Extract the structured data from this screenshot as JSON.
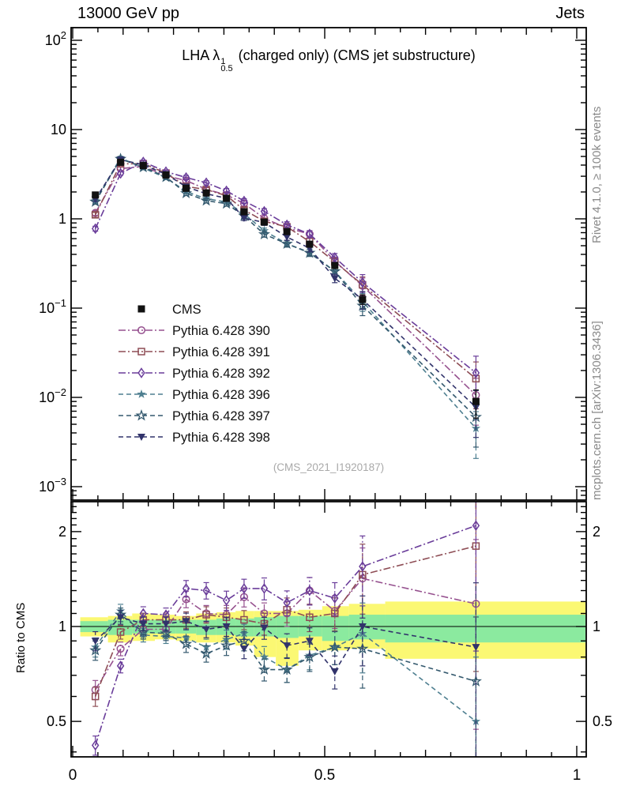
{
  "header": {
    "left": "13000 GeV pp",
    "right": "Jets"
  },
  "side_text": {
    "top": "Rivet 4.1.0, ≥ 100k events",
    "bottom": "mcplots.cern.ch [arXiv:1306.3436]"
  },
  "title": {
    "prefix": "LHA λ",
    "sup": "1",
    "sub": "0.5",
    "suffix": " (charged only) (CMS jet substructure)"
  },
  "watermark": "(CMS_2021_I1920187)",
  "ratio_axis_label": "Ratio to CMS",
  "chart_data": {
    "type": "line",
    "title": "LHA lambda^1_0.5 (charged only) (CMS jet substructure)",
    "x_ticks": [
      {
        "v": 0,
        "label": "0"
      },
      {
        "v": 0.5,
        "label": "0.5"
      },
      {
        "v": 1,
        "label": "1"
      }
    ],
    "main_y_ticks": [
      {
        "v": 100,
        "base": "10",
        "exp": "2"
      },
      {
        "v": 10,
        "base": "10",
        "exp": ""
      },
      {
        "v": 1,
        "base": "1",
        "exp": ""
      },
      {
        "v": 0.1,
        "base": "10",
        "exp": "−1"
      },
      {
        "v": 0.01,
        "base": "10",
        "exp": "−2"
      },
      {
        "v": 0.001,
        "base": "10",
        "exp": "−3"
      }
    ],
    "ratio_y_ticks": [
      {
        "v": 2,
        "label": "2"
      },
      {
        "v": 1,
        "label": "1"
      },
      {
        "v": 0.5,
        "label": "0.5"
      }
    ],
    "xlim": [
      0,
      1
    ],
    "main_ylim": [
      0.00071,
      139
    ],
    "ratio_ylim": [
      0.386,
      2.49
    ],
    "x": [
      0.045,
      0.095,
      0.14,
      0.185,
      0.225,
      0.265,
      0.305,
      0.34,
      0.38,
      0.425,
      0.47,
      0.52,
      0.575,
      0.8
    ],
    "bin_edges": [
      0.015,
      0.07,
      0.118,
      0.163,
      0.205,
      0.245,
      0.285,
      0.323,
      0.36,
      0.403,
      0.448,
      0.495,
      0.548,
      0.62,
      1.019
    ],
    "cms": {
      "name": "CMS",
      "color": "#111111",
      "marker": "square-filled",
      "values": [
        1.85,
        4.3,
        3.95,
        3.1,
        2.2,
        1.95,
        1.7,
        1.2,
        0.92,
        0.72,
        0.52,
        0.3,
        0.125,
        0.009
      ],
      "err_frac": [
        0.05,
        0.03,
        0.03,
        0.03,
        0.03,
        0.035,
        0.04,
        0.04,
        0.045,
        0.05,
        0.06,
        0.07,
        0.12,
        0.35
      ]
    },
    "ratio_err_frac": [
      0.07,
      0.05,
      0.05,
      0.05,
      0.06,
      0.06,
      0.07,
      0.07,
      0.08,
      0.09,
      0.1,
      0.12,
      0.25,
      0.6
    ],
    "series": [
      {
        "name": "Pythia 6.428 390",
        "color": "#96518f",
        "marker": "circle-open",
        "line": "dashdot",
        "ratio": [
          0.63,
          0.85,
          0.98,
          0.98,
          1.22,
          1.1,
          1.09,
          1.24,
          1.1,
          1.1,
          1.3,
          1.12,
          1.42,
          1.18
        ]
      },
      {
        "name": "Pythia 6.428 391",
        "color": "#8e4d55",
        "marker": "square-open",
        "line": "dashdot",
        "ratio": [
          0.6,
          0.96,
          1.05,
          1.05,
          1.05,
          1.09,
          1.07,
          1.05,
          1.02,
          1.13,
          1.07,
          1.1,
          1.46,
          1.8
        ]
      },
      {
        "name": "Pythia 6.428 392",
        "color": "#6a3d9a",
        "marker": "diamond-open",
        "line": "dashdot",
        "ratio": [
          0.42,
          0.75,
          1.1,
          1.09,
          1.32,
          1.3,
          1.21,
          1.32,
          1.32,
          1.19,
          1.3,
          1.23,
          1.55,
          2.09
        ]
      },
      {
        "name": "Pythia 6.428 396",
        "color": "#4e7f90",
        "marker": "star-filled",
        "line": "dashed",
        "ratio": [
          0.86,
          1.12,
          0.94,
          0.93,
          0.92,
          0.86,
          0.91,
          0.95,
          0.8,
          0.73,
          0.81,
          0.86,
          0.95,
          0.5
        ]
      },
      {
        "name": "Pythia 6.428 397",
        "color": "#34596e",
        "marker": "star-open",
        "line": "dashed",
        "ratio": [
          0.84,
          1.09,
          0.96,
          0.95,
          0.88,
          0.82,
          0.87,
          0.9,
          0.73,
          0.73,
          0.8,
          0.86,
          0.85,
          0.67
        ]
      },
      {
        "name": "Pythia 6.428 398",
        "color": "#31336b",
        "marker": "triangle-down-filled",
        "line": "dashed",
        "ratio": [
          0.9,
          1.07,
          1.02,
          1.02,
          1.04,
          0.98,
          1.0,
          0.85,
          0.99,
          0.87,
          0.9,
          0.72,
          1.0,
          0.86
        ]
      }
    ],
    "bands": {
      "yellow_color": "#fbf873",
      "green_color": "#8bea9f",
      "yellow": [
        [
          0.93,
          1.07
        ],
        [
          0.89,
          1.08
        ],
        [
          0.9,
          1.1
        ],
        [
          0.91,
          1.09
        ],
        [
          0.9,
          1.08
        ],
        [
          0.89,
          1.1
        ],
        [
          0.89,
          1.11
        ],
        [
          0.87,
          1.12
        ],
        [
          0.8,
          1.12
        ],
        [
          0.75,
          1.12
        ],
        [
          0.84,
          1.13
        ],
        [
          0.84,
          1.16
        ],
        [
          0.85,
          1.18
        ],
        [
          0.79,
          1.2
        ]
      ],
      "green": [
        [
          0.96,
          1.04
        ],
        [
          0.94,
          1.05
        ],
        [
          0.95,
          1.05
        ],
        [
          0.95,
          1.05
        ],
        [
          0.95,
          1.05
        ],
        [
          0.94,
          1.05
        ],
        [
          0.94,
          1.06
        ],
        [
          0.93,
          1.06
        ],
        [
          0.93,
          1.07
        ],
        [
          0.92,
          1.08
        ],
        [
          0.93,
          1.08
        ],
        [
          0.9,
          1.08
        ],
        [
          0.91,
          1.09
        ],
        [
          0.89,
          1.09
        ]
      ]
    },
    "legend_position": "middle-left",
    "grid": false
  }
}
